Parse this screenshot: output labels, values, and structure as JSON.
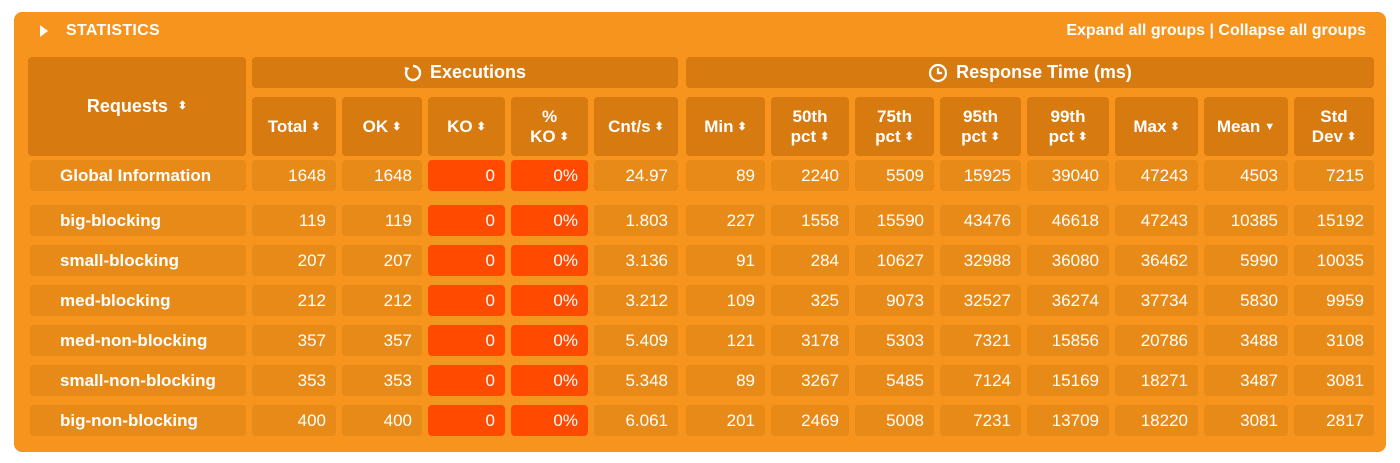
{
  "header": {
    "title": "STATISTICS",
    "expand_label": "Expand all groups",
    "separator": " | ",
    "collapse_label": "Collapse all groups"
  },
  "groups": {
    "requests": "Requests",
    "executions": "Executions",
    "response_time": "Response Time (ms)"
  },
  "columns": [
    {
      "l1": "Total"
    },
    {
      "l1": "OK"
    },
    {
      "l1": "KO"
    },
    {
      "l1": "%",
      "l2": "KO"
    },
    {
      "l1": "Cnt/s"
    },
    {
      "l1": "Min"
    },
    {
      "l1": "50th",
      "l2": "pct"
    },
    {
      "l1": "75th",
      "l2": "pct"
    },
    {
      "l1": "95th",
      "l2": "pct"
    },
    {
      "l1": "99th",
      "l2": "pct"
    },
    {
      "l1": "Max"
    },
    {
      "l1": "Mean"
    },
    {
      "l1": "Std",
      "l2": "Dev"
    }
  ],
  "rows": [
    {
      "name": "Global Information",
      "values": [
        "1648",
        "1648",
        "0",
        "0%",
        "24.97",
        "89",
        "2240",
        "5509",
        "15925",
        "39040",
        "47243",
        "4503",
        "7215"
      ]
    },
    {
      "name": "big-blocking",
      "values": [
        "119",
        "119",
        "0",
        "0%",
        "1.803",
        "227",
        "1558",
        "15590",
        "43476",
        "46618",
        "47243",
        "10385",
        "15192"
      ]
    },
    {
      "name": "small-blocking",
      "values": [
        "207",
        "207",
        "0",
        "0%",
        "3.136",
        "91",
        "284",
        "10627",
        "32988",
        "36080",
        "36462",
        "5990",
        "10035"
      ]
    },
    {
      "name": "med-blocking",
      "values": [
        "212",
        "212",
        "0",
        "0%",
        "3.212",
        "109",
        "325",
        "9073",
        "32527",
        "36274",
        "37734",
        "5830",
        "9959"
      ]
    },
    {
      "name": "med-non-blocking",
      "values": [
        "357",
        "357",
        "0",
        "0%",
        "5.409",
        "121",
        "3178",
        "5303",
        "7321",
        "15856",
        "20786",
        "3488",
        "3108"
      ]
    },
    {
      "name": "small-non-blocking",
      "values": [
        "353",
        "353",
        "0",
        "0%",
        "5.348",
        "89",
        "3267",
        "5485",
        "7124",
        "15169",
        "18271",
        "3487",
        "3081"
      ]
    },
    {
      "name": "big-non-blocking",
      "values": [
        "400",
        "400",
        "0",
        "0%",
        "6.061",
        "201",
        "2469",
        "5008",
        "7231",
        "13709",
        "18220",
        "3081",
        "2817"
      ]
    }
  ],
  "colors": {
    "panel": "#f7941d",
    "header_cell": "#d77a0f",
    "data_cell": "#e88a18",
    "ko_cell": "#ff4a00"
  }
}
